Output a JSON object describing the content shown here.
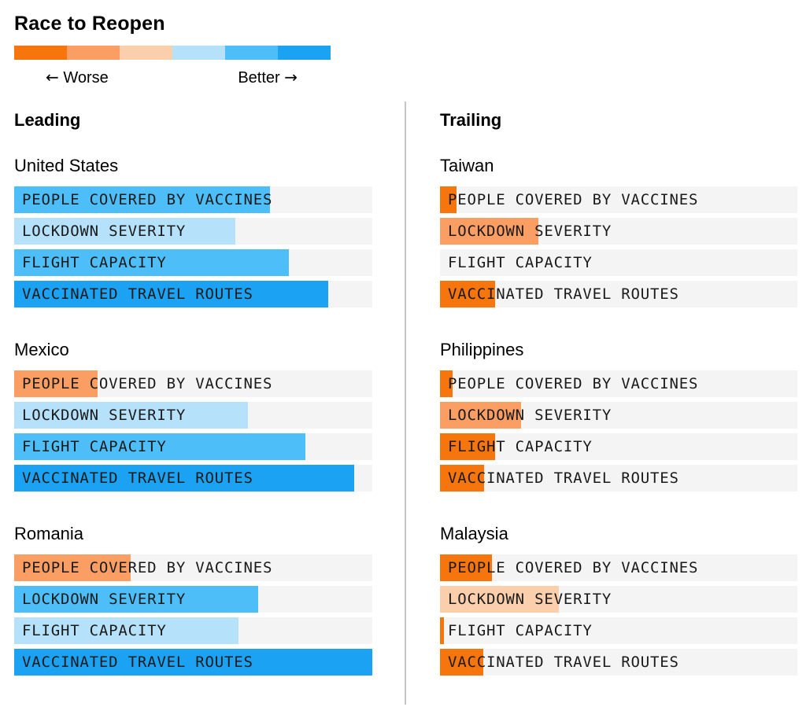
{
  "title": "Race to Reopen",
  "legend": {
    "worse_arrow": "←",
    "worse_label": "Worse",
    "better_label": "Better",
    "better_arrow": "→",
    "scale_colors": [
      "#f7750d",
      "#fb9e63",
      "#fbceac",
      "#b6e1fb",
      "#4ebef9",
      "#1ba2f3"
    ]
  },
  "colors": {
    "strong_orange": "#f7750d",
    "mid_orange": "#fb9e63",
    "pale_orange": "#fbceac",
    "pale_blue": "#b6e1fb",
    "mid_blue": "#4ebef9",
    "strong_blue": "#1ba2f3",
    "track": "#f4f4f4",
    "divider": "#c6c6c6"
  },
  "metrics": [
    "PEOPLE COVERED BY VACCINES",
    "LOCKDOWN SEVERITY",
    "FLIGHT CAPACITY",
    "VACCINATED TRAVEL ROUTES"
  ],
  "columns": [
    {
      "header": "Leading",
      "countries": [
        {
          "name": "United States",
          "bars": [
            {
              "metric": "PEOPLE COVERED BY VACCINES",
              "value_pct": 71.4,
              "color": "mid_blue"
            },
            {
              "metric": "LOCKDOWN SEVERITY",
              "value_pct": 61.8,
              "color": "pale_blue"
            },
            {
              "metric": "FLIGHT CAPACITY",
              "value_pct": 76.7,
              "color": "mid_blue"
            },
            {
              "metric": "VACCINATED TRAVEL ROUTES",
              "value_pct": 87.7,
              "color": "strong_blue"
            }
          ]
        },
        {
          "name": "Mexico",
          "bars": [
            {
              "metric": "PEOPLE COVERED BY VACCINES",
              "value_pct": 23.3,
              "color": "mid_orange"
            },
            {
              "metric": "LOCKDOWN SEVERITY",
              "value_pct": 65.3,
              "color": "pale_blue"
            },
            {
              "metric": "FLIGHT CAPACITY",
              "value_pct": 81.3,
              "color": "mid_blue"
            },
            {
              "metric": "VACCINATED TRAVEL ROUTES",
              "value_pct": 95.0,
              "color": "strong_blue"
            }
          ]
        },
        {
          "name": "Romania",
          "bars": [
            {
              "metric": "PEOPLE COVERED BY VACCINES",
              "value_pct": 32.5,
              "color": "mid_orange"
            },
            {
              "metric": "LOCKDOWN SEVERITY",
              "value_pct": 68.1,
              "color": "mid_blue"
            },
            {
              "metric": "FLIGHT CAPACITY",
              "value_pct": 62.6,
              "color": "pale_blue"
            },
            {
              "metric": "VACCINATED TRAVEL ROUTES",
              "value_pct": 100,
              "color": "strong_blue"
            }
          ]
        }
      ]
    },
    {
      "header": "Trailing",
      "countries": [
        {
          "name": "Taiwan",
          "bars": [
            {
              "metric": "PEOPLE COVERED BY VACCINES",
              "value_pct": 4.6,
              "color": "strong_orange"
            },
            {
              "metric": "LOCKDOWN SEVERITY",
              "value_pct": 27.5,
              "color": "mid_orange"
            },
            {
              "metric": "FLIGHT CAPACITY",
              "value_pct": 0,
              "color": "strong_orange"
            },
            {
              "metric": "VACCINATED TRAVEL ROUTES",
              "value_pct": 15.4,
              "color": "strong_orange"
            }
          ]
        },
        {
          "name": "Philippines",
          "bars": [
            {
              "metric": "PEOPLE COVERED BY VACCINES",
              "value_pct": 3.5,
              "color": "strong_orange"
            },
            {
              "metric": "LOCKDOWN SEVERITY",
              "value_pct": 22.7,
              "color": "mid_orange"
            },
            {
              "metric": "FLIGHT CAPACITY",
              "value_pct": 15.4,
              "color": "strong_orange"
            },
            {
              "metric": "VACCINATED TRAVEL ROUTES",
              "value_pct": 12.3,
              "color": "strong_orange"
            }
          ]
        },
        {
          "name": "Malaysia",
          "bars": [
            {
              "metric": "PEOPLE COVERED BY VACCINES",
              "value_pct": 14.5,
              "color": "strong_orange"
            },
            {
              "metric": "LOCKDOWN SEVERITY",
              "value_pct": 33.3,
              "color": "pale_orange"
            },
            {
              "metric": "FLIGHT CAPACITY",
              "value_pct": 1.1,
              "color": "strong_orange"
            },
            {
              "metric": "VACCINATED TRAVEL ROUTES",
              "value_pct": 12.1,
              "color": "strong_orange"
            }
          ]
        }
      ]
    }
  ],
  "chart_data": {
    "type": "bar",
    "title": "Race to Reopen",
    "scale_note": "values are percent of bar scale, 0 = worst (orange), 100 = best (blue)",
    "legend": {
      "left": "Worse",
      "right": "Better"
    },
    "categories": [
      "PEOPLE COVERED BY VACCINES",
      "LOCKDOWN SEVERITY",
      "FLIGHT CAPACITY",
      "VACCINATED TRAVEL ROUTES"
    ],
    "series": [
      {
        "name": "United States",
        "group": "Leading",
        "values": [
          71,
          62,
          77,
          88
        ]
      },
      {
        "name": "Mexico",
        "group": "Leading",
        "values": [
          23,
          65,
          81,
          95
        ]
      },
      {
        "name": "Romania",
        "group": "Leading",
        "values": [
          33,
          68,
          63,
          100
        ]
      },
      {
        "name": "Taiwan",
        "group": "Trailing",
        "values": [
          5,
          28,
          0,
          15
        ]
      },
      {
        "name": "Philippines",
        "group": "Trailing",
        "values": [
          4,
          23,
          15,
          12
        ]
      },
      {
        "name": "Malaysia",
        "group": "Trailing",
        "values": [
          15,
          33,
          1,
          12
        ]
      }
    ],
    "xlim": [
      0,
      100
    ],
    "grid": false,
    "legend_position": "top"
  }
}
